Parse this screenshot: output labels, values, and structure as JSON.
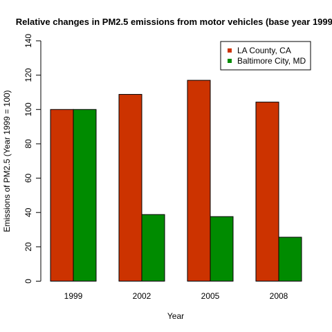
{
  "chart_data": {
    "type": "bar",
    "title": "Relative changes in PM2.5 emissions from motor vehicles (base year 1999)",
    "xlabel": "Year",
    "ylabel": "Emissions of PM2.5 (Year 1999 = 100)",
    "categories": [
      "1999",
      "2002",
      "2005",
      "2008"
    ],
    "series": [
      {
        "name": "LA County, CA",
        "color": "#CC3300",
        "values": [
          100,
          108.8,
          117,
          104.3
        ]
      },
      {
        "name": "Baltimore City, MD",
        "color": "#008B00",
        "values": [
          100,
          38.8,
          37.6,
          25.6
        ]
      }
    ],
    "ylim": [
      0,
      140
    ],
    "yticks": [
      0,
      20,
      40,
      60,
      80,
      100,
      120,
      140
    ],
    "grid": false,
    "legend_position": "top-right"
  }
}
